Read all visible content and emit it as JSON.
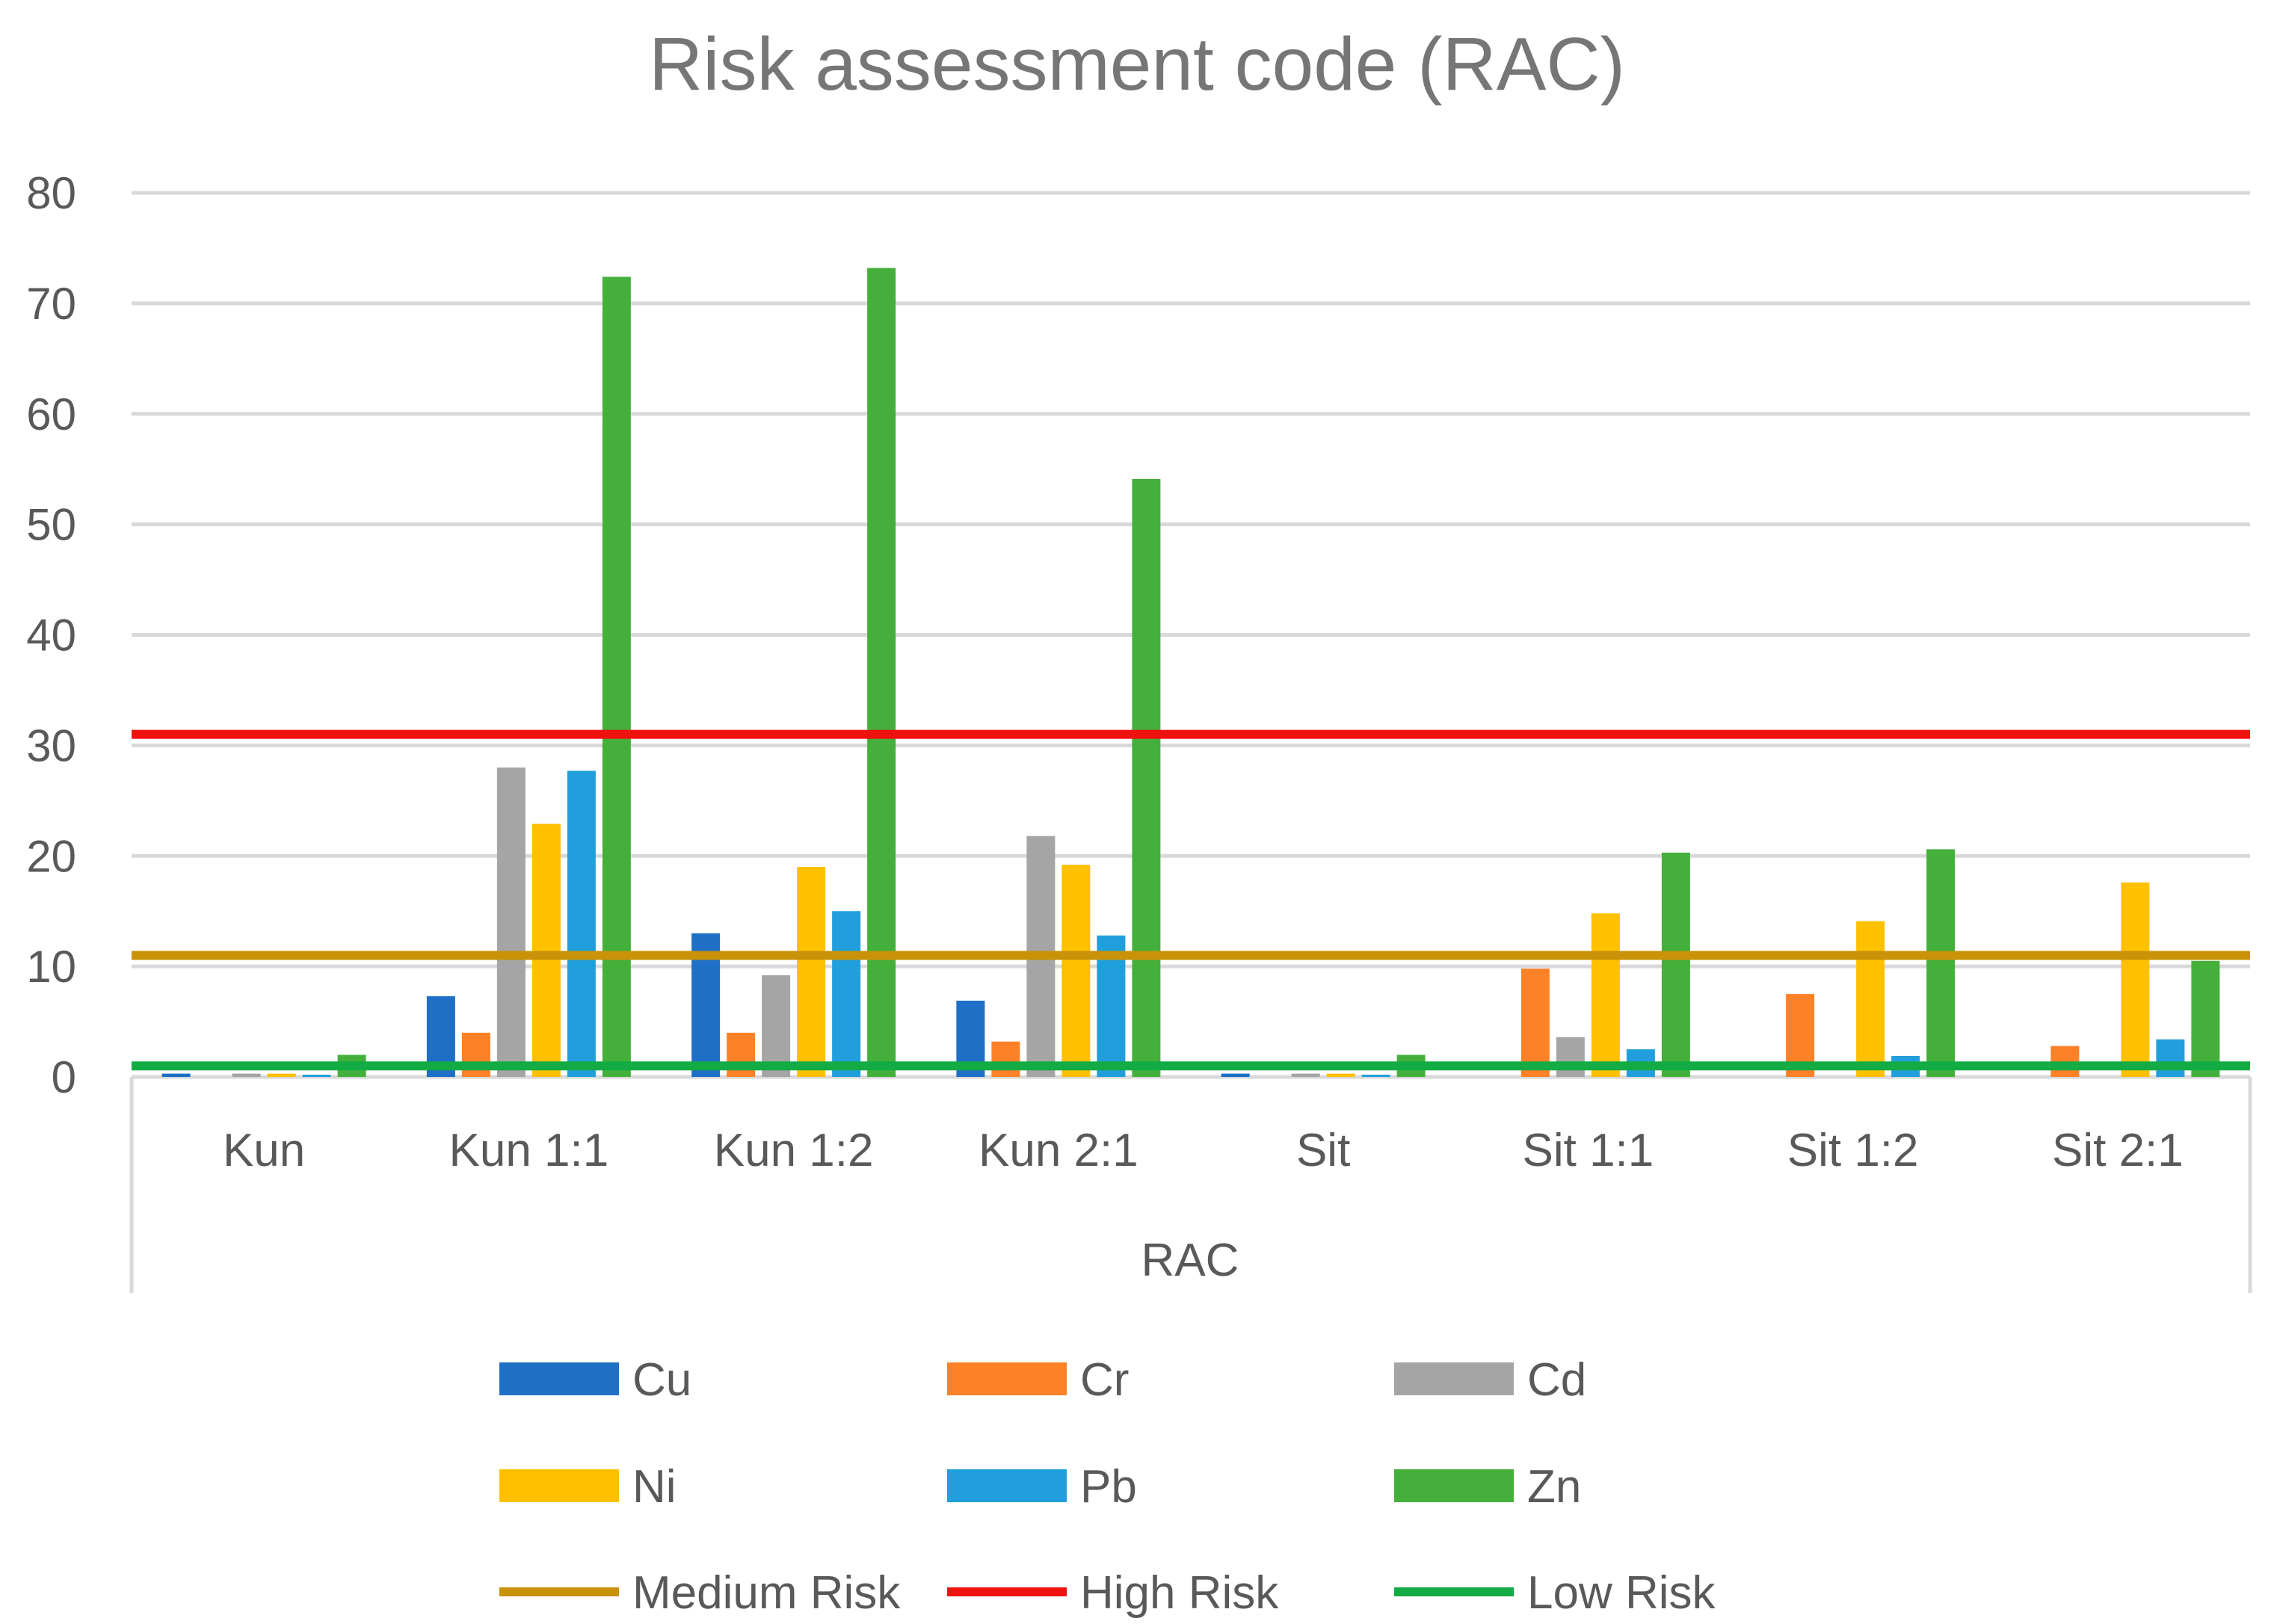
{
  "chart_data": {
    "type": "bar",
    "title": "Risk assessment code (RAC)",
    "xlabel": "RAC",
    "ylabel": "",
    "ylim": [
      0,
      80
    ],
    "yticks": [
      0,
      10,
      20,
      30,
      40,
      50,
      60,
      70,
      80
    ],
    "categories": [
      "Kun",
      "Kun 1:1",
      "Kun 1:2",
      "Kun 2:1",
      "Sit",
      "Sit 1:1",
      "Sit 1:2",
      "Sit 2:1"
    ],
    "series": [
      {
        "name": "Cu",
        "color": "#1f6fc6",
        "values": [
          0.3,
          7.3,
          13.0,
          6.9,
          0.3,
          0,
          0,
          0
        ]
      },
      {
        "name": "Cr",
        "color": "#fd8127",
        "values": [
          0,
          4.0,
          4.0,
          3.2,
          0,
          9.8,
          7.5,
          2.8
        ]
      },
      {
        "name": "Cd",
        "color": "#a5a5a5",
        "values": [
          0.3,
          28.0,
          9.2,
          21.8,
          0.3,
          3.6,
          0,
          0
        ]
      },
      {
        "name": "Ni",
        "color": "#ffc000",
        "values": [
          0.3,
          22.9,
          19.0,
          19.2,
          0.3,
          14.8,
          14.1,
          17.6
        ]
      },
      {
        "name": "Pb",
        "color": "#219fdc",
        "values": [
          0.2,
          27.7,
          15.0,
          12.8,
          0.2,
          2.5,
          1.9,
          3.4
        ]
      },
      {
        "name": "Zn",
        "color": "#44b03b",
        "values": [
          2.0,
          72.4,
          73.2,
          54.1,
          2.0,
          20.3,
          20.6,
          10.5
        ]
      }
    ],
    "reference_lines": [
      {
        "name": "Medium Risk",
        "color": "#c99208",
        "value": 11
      },
      {
        "name": "High Risk",
        "color": "#ef1010",
        "value": 31
      },
      {
        "name": "Low Risk",
        "color": "#13ab44",
        "value": 1
      }
    ],
    "legend_position": "bottom",
    "grid": true
  }
}
